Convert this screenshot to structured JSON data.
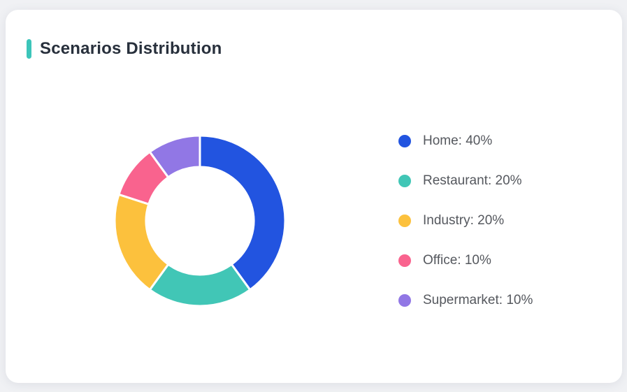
{
  "page": {
    "background_color": "#f0f1f4"
  },
  "card": {
    "background_color": "#ffffff"
  },
  "header": {
    "title": "Scenarios Distribution",
    "accent_color": "#3cc5ba"
  },
  "chart_data": {
    "type": "pie",
    "variant": "donut",
    "title": "Scenarios Distribution",
    "categories": [
      "Home",
      "Restaurant",
      "Industry",
      "Office",
      "Supermarket"
    ],
    "values": [
      40,
      20,
      20,
      10,
      10
    ],
    "unit": "%",
    "colors": [
      "#2254e0",
      "#41c6b6",
      "#fcc13d",
      "#f9638e",
      "#9177e5"
    ],
    "start_angle_deg": 0,
    "direction": "clockwise",
    "inner_radius_ratio": 0.63,
    "segment_gap_color": "#ffffff",
    "legend_position": "right",
    "legend": [
      {
        "label": "Home: 40%",
        "color": "#2254e0"
      },
      {
        "label": "Restaurant: 20%",
        "color": "#41c6b6"
      },
      {
        "label": "Industry: 20%",
        "color": "#fcc13d"
      },
      {
        "label": "Office: 10%",
        "color": "#f9638e"
      },
      {
        "label": "Supermarket: 10%",
        "color": "#9177e5"
      }
    ]
  }
}
